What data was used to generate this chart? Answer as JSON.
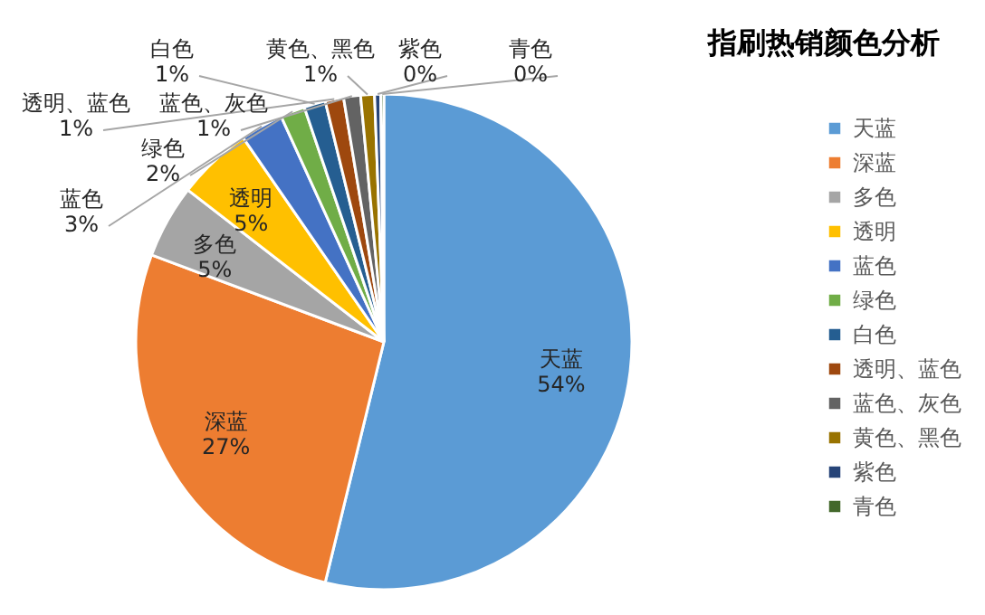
{
  "chart_data": {
    "type": "pie",
    "title": "指刷热销颜色分析",
    "categories": [
      "天蓝",
      "深蓝",
      "多色",
      "透明",
      "蓝色",
      "绿色",
      "白色",
      "透明、蓝色",
      "蓝色、灰色",
      "黄色、黑色",
      "紫色",
      "青色"
    ],
    "values": [
      53.8,
      26.9,
      4.8,
      4.9,
      2.8,
      1.6,
      1.4,
      1.2,
      1.1,
      0.9,
      0.4,
      0.2
    ],
    "value_labels": [
      "54%",
      "27%",
      "5%",
      "5%",
      "3%",
      "2%",
      "1%",
      "1%",
      "1%",
      "1%",
      "0%",
      "0%"
    ],
    "colors": [
      "#5b9bd5",
      "#ed7d31",
      "#a5a5a5",
      "#ffc000",
      "#4472c4",
      "#70ad47",
      "#255e91",
      "#9e480e",
      "#636363",
      "#997300",
      "#264478",
      "#43682b"
    ],
    "legend": "right"
  }
}
